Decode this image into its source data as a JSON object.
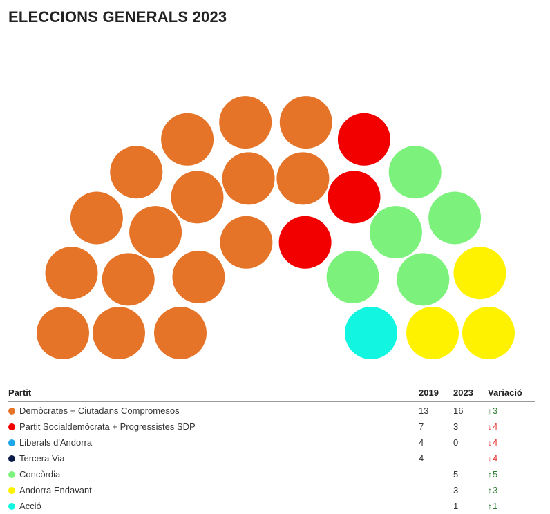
{
  "page": {
    "title": "ELECCIONS GENERALS 2023"
  },
  "table": {
    "headers": {
      "party": "Partit",
      "y2019": "2019",
      "y2023": "2023",
      "variation": "Variació"
    },
    "rows": [
      {
        "party": "Demòcrates + Ciutadans Compromesos",
        "color": "#e57428",
        "y2019": "13",
        "y2023": "16",
        "direction": "up",
        "variation": "3"
      },
      {
        "party": "Partit Socialdemòcrata + Progressistes SDP",
        "color": "#f20000",
        "y2019": "7",
        "y2023": "3",
        "direction": "down",
        "variation": "4"
      },
      {
        "party": "Liberals d'Andorra",
        "color": "#1ea6ea",
        "y2019": "4",
        "y2023": "0",
        "direction": "down",
        "variation": "4"
      },
      {
        "party": "Tercera Via",
        "color": "#0d1b4a",
        "y2019": "4",
        "y2023": "",
        "direction": "down",
        "variation": "4"
      },
      {
        "party": "Concòrdia",
        "color": "#7cf27c",
        "y2019": "",
        "y2023": "5",
        "direction": "up",
        "variation": "5"
      },
      {
        "party": "Andorra Endavant",
        "color": "#fff200",
        "y2019": "",
        "y2023": "3",
        "direction": "up",
        "variation": "3"
      },
      {
        "party": "Acció",
        "color": "#12f5e0",
        "y2019": "",
        "y2023": "1",
        "direction": "up",
        "variation": "1"
      }
    ]
  },
  "chart_data": {
    "type": "parliament",
    "total_seats": 28,
    "series": [
      {
        "name": "Demòcrates + Ciutadans Compromesos",
        "seats": 16,
        "color": "#e57428"
      },
      {
        "name": "Partit Socialdemòcrata + Progressistes SDP",
        "seats": 3,
        "color": "#f20000"
      },
      {
        "name": "Concòrdia",
        "seats": 5,
        "color": "#7cf27c"
      },
      {
        "name": "Andorra Endavant",
        "seats": 3,
        "color": "#fff200"
      },
      {
        "name": "Acció",
        "seats": 1,
        "color": "#12f5e0"
      }
    ]
  }
}
